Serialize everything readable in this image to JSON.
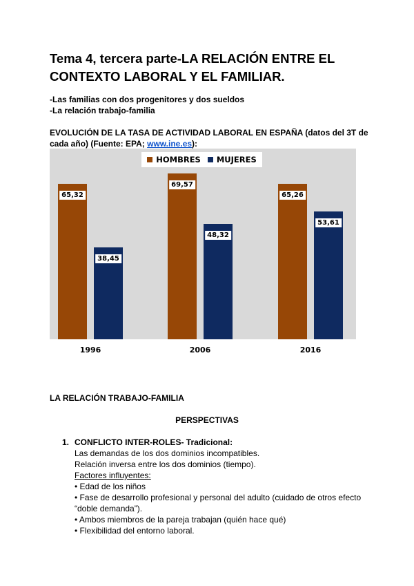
{
  "title": "Tema 4, tercera parte-LA RELACIÓN ENTRE EL CONTEXTO LABORAL Y EL FAMILIAR.",
  "subtopics": [
    "-Las familias con dos progenitores y dos sueldos",
    "-La relación trabajo-familia"
  ],
  "chart_caption": {
    "text": "EVOLUCIÓN DE LA TASA DE ACTIVIDAD LABORAL EN ESPAÑA (datos del 3T de cada año) (Fuente: EPA; ",
    "link": "www.ine.es",
    "end": "):"
  },
  "chart_data": {
    "type": "bar",
    "categories": [
      "1996",
      "2006",
      "2016"
    ],
    "series": [
      {
        "name": "HOMBRES",
        "color": "#974706",
        "values": [
          65.32,
          69.57,
          65.26
        ]
      },
      {
        "name": "MUJERES",
        "color": "#0f2a60",
        "values": [
          38.45,
          48.32,
          53.61
        ]
      }
    ],
    "labels": [
      [
        "65,32",
        "69,57",
        "65,26"
      ],
      [
        "38,45",
        "48,32",
        "53,61"
      ]
    ],
    "ylim": [
      0,
      80
    ],
    "legend": "top",
    "grid": false,
    "background": "#d9d9d9"
  },
  "section_title": "LA RELACIÓN TRABAJO-FAMILIA",
  "perspectivas": "PERSPECTIVAS",
  "item1": {
    "number": "1.",
    "heading": "CONFLICTO INTER-ROLES- Tradicional:",
    "lines": [
      "Las demandas de los dos dominios incompatibles.",
      "Relación inversa entre los dos dominios (tiempo)."
    ],
    "factors_label": "Factores influyentes:",
    "bullets": [
      "• Edad de los niños",
      "• Fase de desarrollo profesional y personal del adulto (cuidado de otros efecto “doble demanda”).",
      "• Ambos miembros de la pareja trabajan (quién hace qué)",
      "• Flexibilidad del entorno laboral."
    ]
  }
}
